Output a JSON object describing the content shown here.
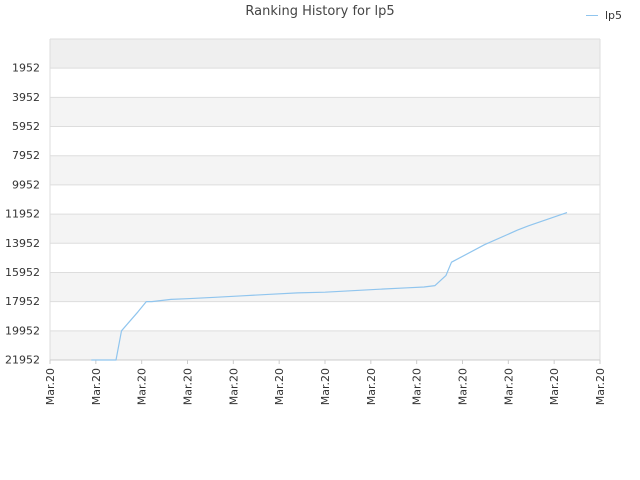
{
  "chart_data": {
    "type": "line",
    "title": "Ranking History for lp5",
    "xlabel": "",
    "ylabel": "",
    "y_reversed": true,
    "ylim": [
      21952,
      -48
    ],
    "yticks": [
      1952,
      3952,
      5952,
      7952,
      9952,
      11952,
      13952,
      15952,
      17952,
      19952,
      21952
    ],
    "xtick_labels": [
      "Mar.20",
      "Mar.20",
      "Mar.20",
      "Mar.20",
      "Mar.20",
      "Mar.20",
      "Mar.20",
      "Mar.20",
      "Mar.20",
      "Mar.20",
      "Mar.20",
      "Mar.20",
      "Mar.20"
    ],
    "legend": {
      "position": "top-right"
    },
    "grid": true,
    "line_color": "#90c5ee",
    "band_colors": [
      "#efefef",
      "#f4f4f4",
      "#ffffff"
    ],
    "series": [
      {
        "name": "lp5",
        "x": [
          0.075,
          0.085,
          0.12,
          0.13,
          0.16,
          0.175,
          0.185,
          0.22,
          0.25,
          0.3,
          0.35,
          0.4,
          0.45,
          0.5,
          0.55,
          0.6,
          0.65,
          0.68,
          0.7,
          0.72,
          0.73,
          0.79,
          0.85,
          0.87,
          0.94
        ],
        "y": [
          21952,
          21952,
          21952,
          19952,
          18652,
          17952,
          17952,
          17802,
          17752,
          17652,
          17552,
          17452,
          17352,
          17302,
          17202,
          17102,
          17002,
          16952,
          16852,
          16152,
          15252,
          14052,
          13052,
          12752,
          11852
        ]
      }
    ]
  }
}
